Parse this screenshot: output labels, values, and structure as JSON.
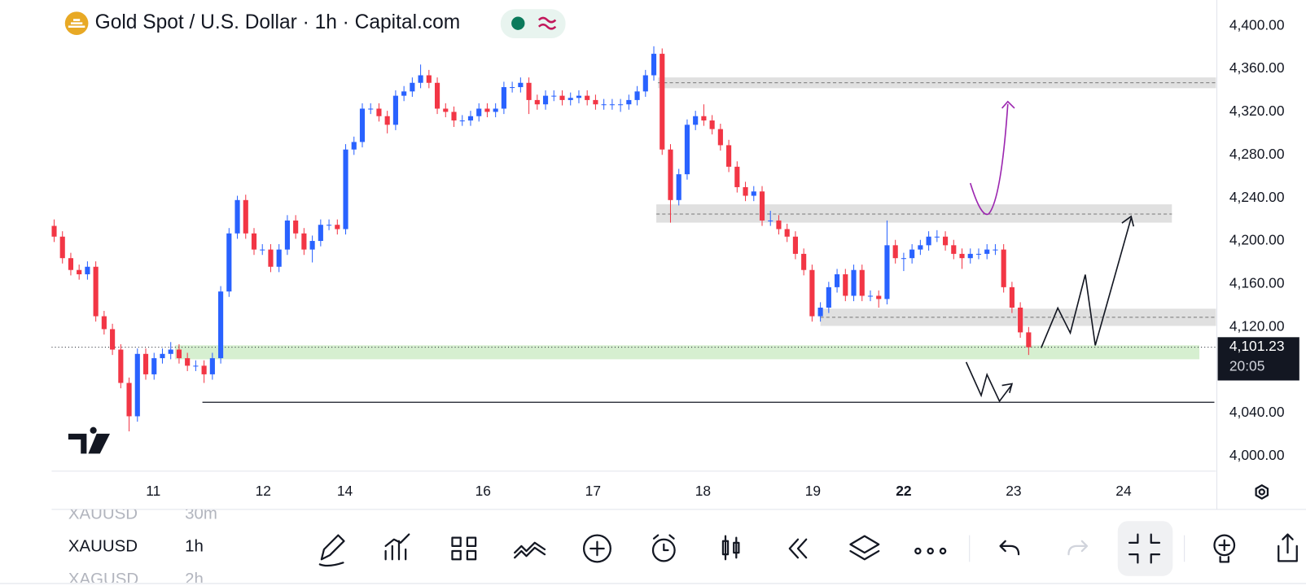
{
  "header": {
    "title": "Gold Spot / U.S. Dollar · 1h · Capital.com"
  },
  "chart_data": {
    "type": "candlestick",
    "open": [
      4214,
      4204,
      4184,
      4173,
      4169,
      4176,
      4130,
      4118,
      4099,
      4068,
      4037,
      4095,
      4076,
      4091,
      4095,
      4099,
      4091,
      4084,
      4084,
      4076,
      4091,
      4153,
      4207,
      4238,
      4207,
      4192,
      4192,
      4176,
      4192,
      4219,
      4207,
      4192,
      4200,
      4215,
      4215,
      4211,
      4285,
      4292,
      4323,
      4323,
      4316,
      4308,
      4335,
      4339,
      4347,
      4354,
      4347,
      4323,
      4320,
      4312,
      4312,
      4316,
      4323,
      4320,
      4323,
      4343,
      4343,
      4347,
      4331,
      4327,
      4335,
      4335,
      4331,
      4333,
      4335,
      4331,
      4327,
      4327,
      4327,
      4327,
      4331,
      4339,
      4354,
      4374,
      4285,
      4238,
      4262,
      4308,
      4316,
      4312,
      4304,
      4289,
      4269,
      4250,
      4242,
      4246,
      4219,
      4219,
      4211,
      4204,
      4188,
      4173,
      4130,
      4138,
      4157,
      4169,
      4149,
      4173,
      4149,
      4149,
      4146,
      4196,
      4184,
      4184,
      4192,
      4196,
      4204,
      4204,
      4196,
      4188,
      4184,
      4188,
      4188,
      4192,
      4192,
      4157,
      4138,
      4115
    ],
    "high": [
      4220,
      4209,
      4189,
      4178,
      4181,
      4181,
      4135,
      4123,
      4104,
      4073,
      4100,
      4100,
      4096,
      4100,
      4106,
      4104,
      4096,
      4089,
      4089,
      4096,
      4158,
      4212,
      4242,
      4243,
      4212,
      4197,
      4197,
      4197,
      4224,
      4224,
      4212,
      4205,
      4220,
      4220,
      4220,
      4290,
      4297,
      4328,
      4328,
      4328,
      4321,
      4340,
      4344,
      4352,
      4364,
      4359,
      4352,
      4328,
      4325,
      4317,
      4321,
      4328,
      4328,
      4328,
      4348,
      4348,
      4352,
      4352,
      4336,
      4340,
      4340,
      4340,
      4338,
      4340,
      4340,
      4336,
      4332,
      4332,
      4332,
      4336,
      4344,
      4359,
      4381,
      4379,
      4290,
      4267,
      4313,
      4321,
      4327,
      4317,
      4309,
      4294,
      4274,
      4255,
      4251,
      4251,
      4228,
      4224,
      4216,
      4209,
      4193,
      4178,
      4143,
      4162,
      4174,
      4174,
      4178,
      4178,
      4154,
      4154,
      4219,
      4201,
      4189,
      4197,
      4201,
      4209,
      4210,
      4209,
      4201,
      4193,
      4193,
      4193,
      4197,
      4197,
      4197,
      4162,
      4143,
      4120
    ],
    "low": [
      4199,
      4179,
      4168,
      4164,
      4164,
      4125,
      4113,
      4094,
      4063,
      4023,
      4032,
      4071,
      4071,
      4086,
      4090,
      4086,
      4079,
      4079,
      4068,
      4071,
      4086,
      4148,
      4202,
      4202,
      4187,
      4187,
      4171,
      4171,
      4187,
      4202,
      4187,
      4180,
      4195,
      4210,
      4206,
      4206,
      4280,
      4287,
      4318,
      4311,
      4300,
      4303,
      4330,
      4334,
      4342,
      4342,
      4318,
      4315,
      4306,
      4307,
      4307,
      4311,
      4315,
      4315,
      4318,
      4338,
      4338,
      4318,
      4322,
      4322,
      4330,
      4326,
      4326,
      4328,
      4326,
      4322,
      4322,
      4322,
      4320,
      4322,
      4326,
      4334,
      4349,
      4280,
      4217,
      4233,
      4257,
      4303,
      4307,
      4299,
      4284,
      4264,
      4245,
      4237,
      4237,
      4214,
      4214,
      4206,
      4199,
      4183,
      4168,
      4125,
      4125,
      4133,
      4152,
      4144,
      4144,
      4144,
      4144,
      4138,
      4141,
      4179,
      4172,
      4179,
      4187,
      4191,
      4199,
      4191,
      4183,
      4174,
      4179,
      4183,
      4183,
      4187,
      4152,
      4133,
      4110,
      4094
    ],
    "close": [
      4204,
      4184,
      4173,
      4169,
      4176,
      4130,
      4118,
      4099,
      4068,
      4037,
      4095,
      4076,
      4091,
      4095,
      4099,
      4091,
      4084,
      4084,
      4076,
      4091,
      4153,
      4207,
      4238,
      4207,
      4192,
      4192,
      4176,
      4192,
      4219,
      4207,
      4192,
      4200,
      4215,
      4215,
      4211,
      4285,
      4292,
      4323,
      4323,
      4316,
      4308,
      4335,
      4339,
      4347,
      4354,
      4347,
      4323,
      4320,
      4312,
      4312,
      4316,
      4323,
      4320,
      4323,
      4343,
      4343,
      4347,
      4331,
      4327,
      4335,
      4335,
      4331,
      4333,
      4335,
      4331,
      4327,
      4327,
      4327,
      4327,
      4331,
      4339,
      4354,
      4374,
      4285,
      4238,
      4262,
      4308,
      4316,
      4312,
      4304,
      4289,
      4269,
      4250,
      4242,
      4246,
      4219,
      4219,
      4211,
      4204,
      4188,
      4173,
      4130,
      4138,
      4157,
      4169,
      4149,
      4173,
      4149,
      4149,
      4146,
      4196,
      4184,
      4184,
      4192,
      4196,
      4204,
      4204,
      4196,
      4188,
      4184,
      4188,
      4188,
      4192,
      4192,
      4157,
      4138,
      4115,
      4101.23
    ],
    "up_color": "#2962ff",
    "down_color": "#f23645",
    "xlim": [
      -0.3,
      139.5
    ],
    "ylim": [
      3986,
      4424
    ],
    "yticks": [
      {
        "value": 4000,
        "label": "4,000.00"
      },
      {
        "value": 4040,
        "label": "4,040.00"
      },
      {
        "value": 4080,
        "label": "4,080.00"
      },
      {
        "value": 4120,
        "label": "4,120.00"
      },
      {
        "value": 4160,
        "label": "4,160.00"
      },
      {
        "value": 4200,
        "label": "4,200.00"
      },
      {
        "value": 4240,
        "label": "4,240.00"
      },
      {
        "value": 4280,
        "label": "4,280.00"
      },
      {
        "value": 4320,
        "label": "4,320.00"
      },
      {
        "value": 4360,
        "label": "4,360.00"
      },
      {
        "value": 4400,
        "label": "4,400.00"
      }
    ],
    "xticks": [
      {
        "value": 11.9,
        "label": "11"
      },
      {
        "value": 25.1,
        "label": "12"
      },
      {
        "value": 34.9,
        "label": "14"
      },
      {
        "value": 51.5,
        "label": "16"
      },
      {
        "value": 64.7,
        "label": "17"
      },
      {
        "value": 77.9,
        "label": "18"
      },
      {
        "value": 91.1,
        "label": "19"
      },
      {
        "value": 102,
        "label": "22"
      },
      {
        "value": 115.2,
        "label": "23"
      },
      {
        "value": 128.4,
        "label": "24"
      }
    ],
    "last_price": {
      "value": 4101.23,
      "label": "4,101.23"
    },
    "countdown": "20:05",
    "zones": [
      {
        "y": [
          4342,
          4352
        ],
        "x": [
          72.5,
          139.5
        ],
        "line": 4347,
        "color": "#e0e0e0"
      },
      {
        "y": [
          4217,
          4234
        ],
        "x": [
          72.3,
          134.2
        ],
        "line": 4225,
        "color": "#e0e0e0"
      },
      {
        "y": [
          4121,
          4137
        ],
        "x": [
          92,
          139.5
        ],
        "line": 4129,
        "color": "#e0e0e0"
      },
      {
        "y": [
          4090,
          4103
        ],
        "x": [
          14.5,
          137.5
        ],
        "color": "#d6efd0"
      }
    ],
    "levels": [
      {
        "y": 4050,
        "x": [
          17.8,
          139.3
        ],
        "color": "#131722"
      }
    ]
  },
  "symbol_list": [
    {
      "symbol": "XAUUSD",
      "interval": "30m"
    },
    {
      "symbol": "XAUUSD",
      "interval": "1h"
    },
    {
      "symbol": "XAGUSD",
      "interval": "2h"
    }
  ]
}
